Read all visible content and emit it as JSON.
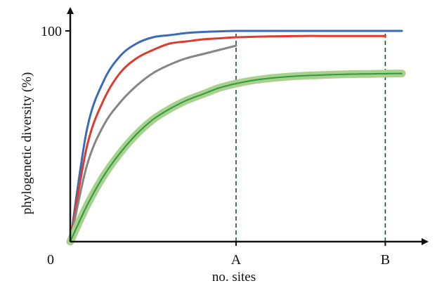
{
  "chart_data": {
    "type": "line",
    "title": "",
    "xlabel": "no. sites",
    "ylabel": "phylogenetic diversity (%)",
    "origin_label": "0",
    "y_ticks": [
      {
        "value": 100,
        "label": "100",
        "color": "#1f6b3a"
      }
    ],
    "x_ticks": [
      {
        "value": 0.5,
        "label": "A"
      },
      {
        "value": 0.95,
        "label": "B"
      }
    ],
    "xlim": [
      0,
      1
    ],
    "ylim": [
      0,
      100
    ],
    "grid": false,
    "series": [
      {
        "color": "#3a6bb5",
        "highlight": false,
        "x": [
          0,
          0.05,
          0.1,
          0.15,
          0.2,
          0.25,
          0.3,
          0.35,
          0.4,
          0.45,
          0.5,
          0.55,
          0.6,
          0.65,
          0.7,
          0.75,
          0.8,
          0.85,
          0.9,
          0.95,
          1.0
        ],
        "values": [
          0,
          53,
          76,
          88,
          94,
          97,
          98,
          99,
          99.5,
          99.8,
          100,
          100,
          100,
          100,
          100,
          100,
          100,
          100,
          100,
          100,
          100
        ]
      },
      {
        "color": "#e03a2e",
        "highlight": false,
        "x": [
          0,
          0.05,
          0.1,
          0.15,
          0.2,
          0.25,
          0.3,
          0.35,
          0.4,
          0.45,
          0.5,
          0.55,
          0.6,
          0.65,
          0.7,
          0.75,
          0.8,
          0.85,
          0.9,
          0.95
        ],
        "values": [
          0,
          45,
          67,
          80,
          87,
          91,
          94,
          95,
          96,
          96.5,
          97,
          97.2,
          97.4,
          97.5,
          97.6,
          97.6,
          97.6,
          97.6,
          97.6,
          97.6
        ]
      },
      {
        "color": "#858585",
        "highlight": false,
        "x": [
          0,
          0.05,
          0.1,
          0.15,
          0.2,
          0.25,
          0.3,
          0.35,
          0.4,
          0.45,
          0.5
        ],
        "values": [
          0,
          36,
          55,
          66,
          74,
          80,
          84,
          87,
          89,
          91,
          93
        ]
      },
      {
        "color": "#2f9a3e",
        "highlight": true,
        "highlight_color": "#a9d18e",
        "x": [
          0,
          0.05,
          0.1,
          0.15,
          0.2,
          0.25,
          0.3,
          0.35,
          0.4,
          0.45,
          0.5,
          0.55,
          0.6,
          0.65,
          0.7,
          0.75,
          0.8,
          0.85,
          0.9,
          0.95,
          1.0
        ],
        "values": [
          0,
          17,
          31,
          42,
          51,
          58,
          63,
          67,
          70,
          73,
          75,
          76.5,
          77.5,
          78.2,
          78.7,
          79,
          79.3,
          79.5,
          79.6,
          79.7,
          79.8
        ]
      }
    ],
    "reference_lines": [
      {
        "x": 0.5,
        "color": "#1f4d2a",
        "style": "dashed"
      },
      {
        "x": 0.95,
        "color": "#1f4d2a",
        "style": "dashed"
      }
    ],
    "colors": {
      "axis": "#111111",
      "reference": "#1f4d2a"
    }
  }
}
